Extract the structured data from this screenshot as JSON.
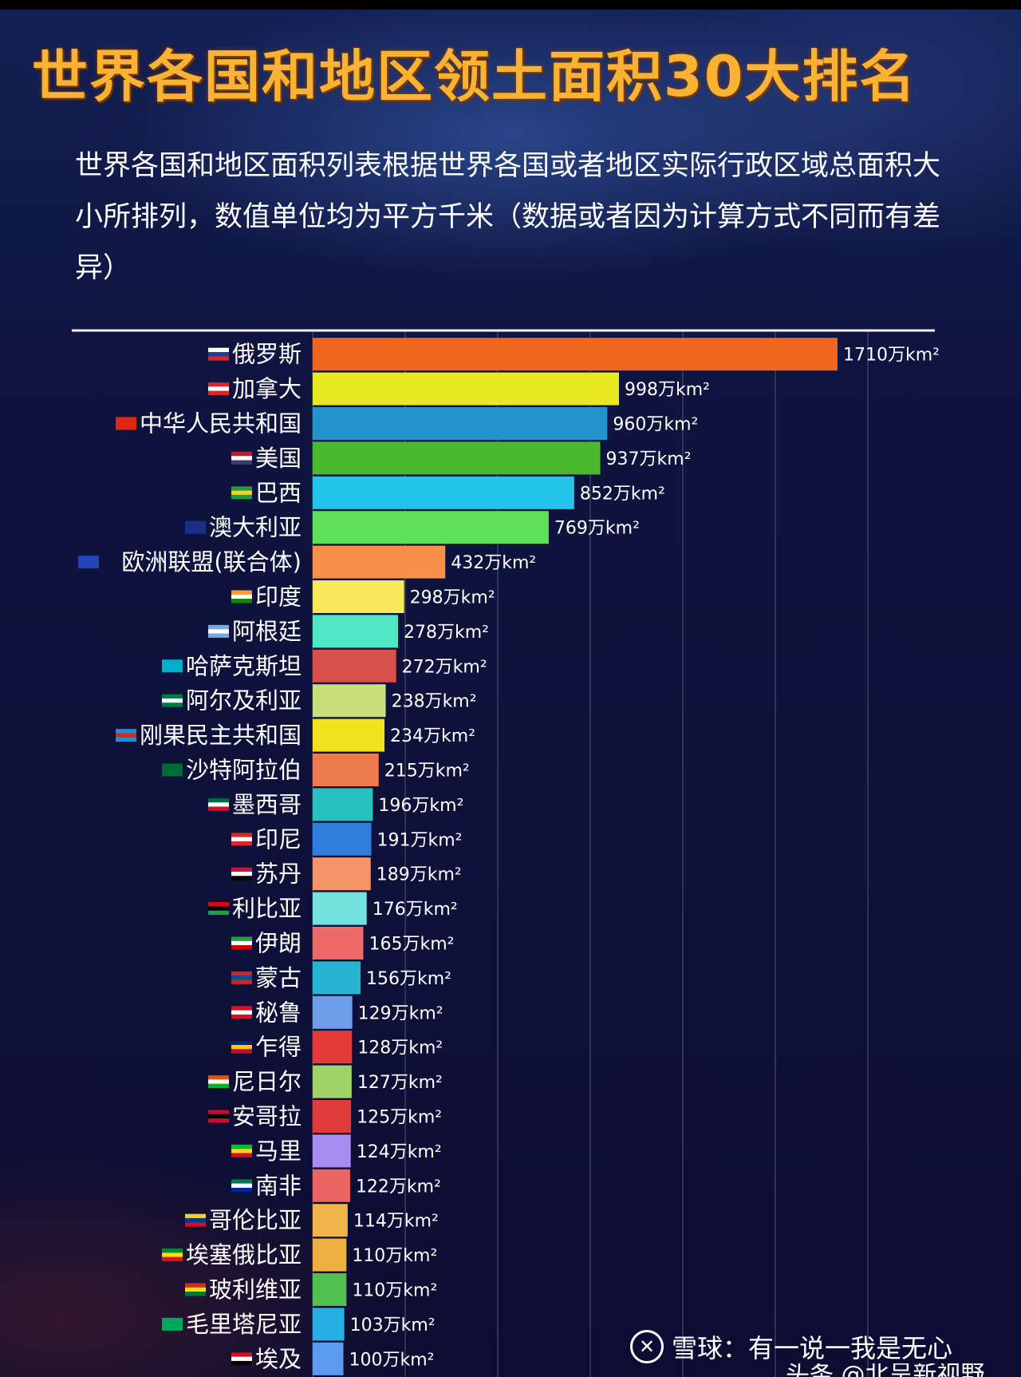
{
  "title": "世界各国和地区领土面积30大排名",
  "subtitle": "世界各国和地区面积列表根据世界各国或者地区实际行政区域总面积大小所排列，数值单位均为平方千米（数据或者因为计算方式不同而有差异）",
  "watermark": {
    "icon": "snowball-logo-icon",
    "text": "雪球：有一说一我是无心",
    "partial_text": "头条 @北呈新视野"
  },
  "chart_data": {
    "type": "bar",
    "orientation": "horizontal",
    "title": "世界各国和地区领土面积30大排名",
    "unit_suffix": "万km²",
    "xlim": [
      0,
      1710
    ],
    "grid": true,
    "legend": "none",
    "categories": [
      "俄罗斯",
      "加拿大",
      "中华人民共和国",
      "美国",
      "巴西",
      "澳大利亚",
      "欧洲联盟(联合体)",
      "印度",
      "阿根廷",
      "哈萨克斯坦",
      "阿尔及利亚",
      "刚果民主共和国",
      "沙特阿拉伯",
      "墨西哥",
      "印尼",
      "苏丹",
      "利比亚",
      "伊朗",
      "蒙古",
      "秘鲁",
      "乍得",
      "尼日尔",
      "安哥拉",
      "马里",
      "南非",
      "哥伦比亚",
      "埃塞俄比亚",
      "玻利维亚",
      "毛里塔尼亚",
      "埃及"
    ],
    "values": [
      1710,
      998,
      960,
      937,
      852,
      769,
      432,
      298,
      278,
      272,
      238,
      234,
      215,
      196,
      191,
      189,
      176,
      165,
      156,
      129,
      128,
      127,
      125,
      124,
      122,
      114,
      110,
      110,
      103,
      100
    ],
    "value_labels": [
      "1710万km²",
      "998万km²",
      "960万km²",
      "937万km²",
      "852万km²",
      "769万km²",
      "432万km²",
      "298万km²",
      "278万km²",
      "272万km²",
      "238万km²",
      "234万km²",
      "215万km²",
      "196万km²",
      "191万km²",
      "189万km²",
      "176万km²",
      "165万km²",
      "156万km²",
      "129万km²",
      "128万km²",
      "127万km²",
      "125万km²",
      "124万km²",
      "122万km²",
      "114万km²",
      "110万km²",
      "110万km²",
      "103万km²",
      "100万km²"
    ],
    "bar_colors": [
      "#f0641e",
      "#e8e823",
      "#2493cc",
      "#4cb82d",
      "#22c4ea",
      "#5fe15a",
      "#f8904a",
      "#f6e85a",
      "#4fe7c3",
      "#d9504a",
      "#c7e07a",
      "#f0e21e",
      "#ee7a4e",
      "#27c2c0",
      "#2f7fe0",
      "#f59469",
      "#74e2dd",
      "#ee6a68",
      "#25b5d3",
      "#6f9fe8",
      "#e23b39",
      "#9ed468",
      "#e23b3b",
      "#a98cf0",
      "#ee6464",
      "#f0b54a",
      "#eeb040",
      "#50c050",
      "#28aee3",
      "#5c9cf0"
    ],
    "flag_colors": [
      [
        "#ffffff",
        "#1c3fa0",
        "#d62828"
      ],
      [
        "#d62828",
        "#ffffff",
        "#d62828"
      ],
      [
        "#de2910",
        "#de2910",
        "#de2910"
      ],
      [
        "#b22234",
        "#ffffff",
        "#3c3b6e"
      ],
      [
        "#1f9c3e",
        "#f7d417",
        "#1f9c3e"
      ],
      [
        "#1a2f8a",
        "#1a2f8a",
        "#1a2f8a"
      ],
      [
        "#2345b8",
        "#2345b8",
        "#2345b8"
      ],
      [
        "#ff9933",
        "#ffffff",
        "#138808"
      ],
      [
        "#74acdf",
        "#ffffff",
        "#74acdf"
      ],
      [
        "#00afca",
        "#00afca",
        "#00afca"
      ],
      [
        "#007a3d",
        "#ffffff",
        "#007a3d"
      ],
      [
        "#1e90d0",
        "#d62828",
        "#1e90d0"
      ],
      [
        "#006c35",
        "#006c35",
        "#006c35"
      ],
      [
        "#006847",
        "#ffffff",
        "#ce1126"
      ],
      [
        "#d62828",
        "#ffffff",
        "#d62828"
      ],
      [
        "#d21034",
        "#ffffff",
        "#000000"
      ],
      [
        "#e70013",
        "#000000",
        "#239e46"
      ],
      [
        "#239f40",
        "#ffffff",
        "#da0000"
      ],
      [
        "#c4272f",
        "#015197",
        "#c4272f"
      ],
      [
        "#d91023",
        "#ffffff",
        "#d91023"
      ],
      [
        "#002664",
        "#fecb00",
        "#c60c30"
      ],
      [
        "#e05206",
        "#ffffff",
        "#0db02b"
      ],
      [
        "#cc092f",
        "#000000",
        "#cc092f"
      ],
      [
        "#14b53a",
        "#fcd116",
        "#ce1126"
      ],
      [
        "#007a4d",
        "#ffffff",
        "#002395"
      ],
      [
        "#fcd116",
        "#003893",
        "#ce1126"
      ],
      [
        "#078930",
        "#fcdd09",
        "#da121a"
      ],
      [
        "#d52b1e",
        "#f9e300",
        "#007934"
      ],
      [
        "#00a95c",
        "#00a95c",
        "#00a95c"
      ],
      [
        "#ce1126",
        "#ffffff",
        "#000000"
      ]
    ]
  }
}
